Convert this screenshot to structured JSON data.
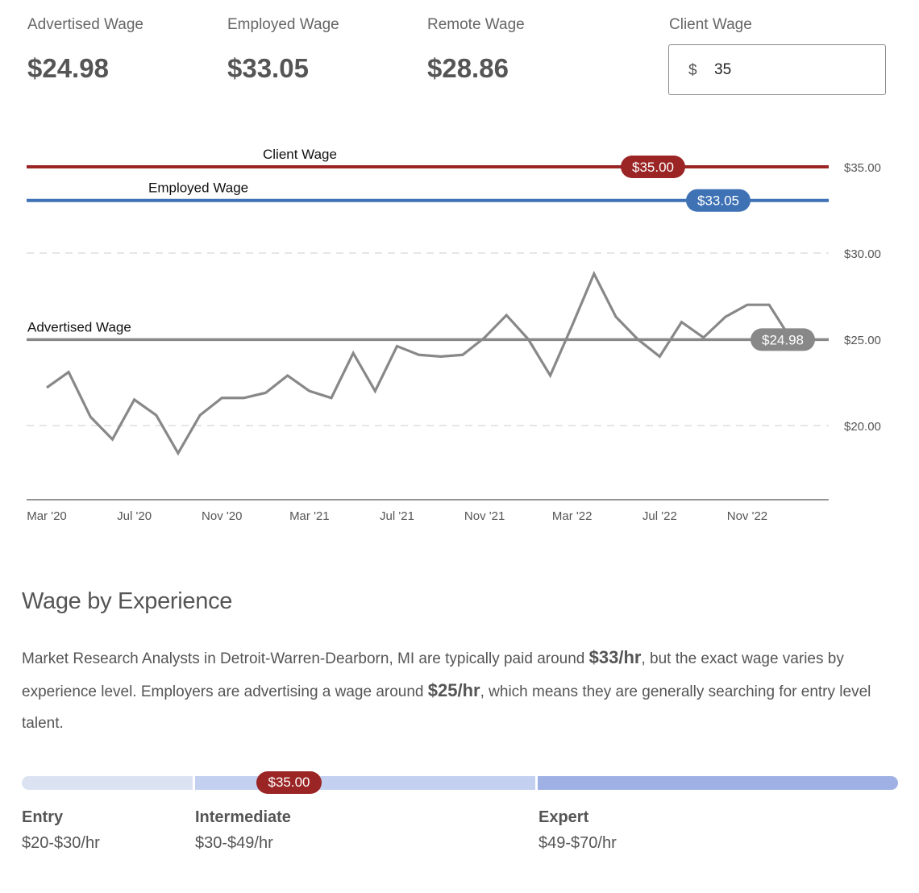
{
  "stats": [
    {
      "label": "Advertised Wage",
      "value": "$24.98"
    },
    {
      "label": "Employed Wage",
      "value": "$33.05"
    },
    {
      "label": "Remote Wage",
      "value": "$28.86"
    }
  ],
  "client_input": {
    "label": "Client Wage",
    "prefix": "$",
    "value": "35"
  },
  "chart_data": {
    "type": "line",
    "x": [
      "2020-03",
      "2020-04",
      "2020-05",
      "2020-06",
      "2020-07",
      "2020-08",
      "2020-09",
      "2020-10",
      "2020-11",
      "2020-12",
      "2021-01",
      "2021-02",
      "2021-03",
      "2021-04",
      "2021-05",
      "2021-06",
      "2021-07",
      "2021-08",
      "2021-09",
      "2021-10",
      "2021-11",
      "2021-12",
      "2022-01",
      "2022-02",
      "2022-03",
      "2022-04",
      "2022-05",
      "2022-06",
      "2022-07",
      "2022-08",
      "2022-09",
      "2022-10",
      "2022-11",
      "2022-12",
      "2023-01"
    ],
    "series": [
      {
        "values": [
          22.2,
          23.1,
          20.5,
          19.2,
          21.5,
          20.6,
          18.4,
          20.6,
          21.6,
          21.6,
          21.9,
          22.9,
          22.0,
          21.6,
          24.2,
          22.0,
          24.6,
          24.1,
          24.0,
          24.1,
          25.1,
          26.4,
          25.0,
          22.9,
          25.8,
          28.8,
          26.3,
          25.0,
          24.0,
          26.0,
          25.1,
          26.3,
          27.0,
          27.0,
          25.0
        ],
        "color": "#888888"
      }
    ],
    "reference_lines": [
      {
        "name": "Client Wage",
        "value": 35.0,
        "label": "$35.00",
        "color": "#9b2525"
      },
      {
        "name": "Employed Wage",
        "value": 33.05,
        "label": "$33.05",
        "color": "#3f72b5"
      },
      {
        "name": "Advertised Wage",
        "value": 24.98,
        "label": "$24.98",
        "color": "#888888"
      }
    ],
    "x_ticks": [
      "Mar '20",
      "Jul '20",
      "Nov '20",
      "Mar '21",
      "Jul '21",
      "Nov '21",
      "Mar '22",
      "Jul '22",
      "Nov '22"
    ],
    "y_ticks": [
      "$35.00",
      "$30.00",
      "$25.00",
      "$20.00"
    ],
    "ylim": [
      15,
      35
    ],
    "grid": "dashed horizontal at $20.00 and $30.00",
    "xlabel": "",
    "ylabel": "",
    "title": ""
  },
  "experience": {
    "title": "Wage by Experience",
    "text_1": "Market Research Analysts in Detroit-Warren-Dearborn, MI are typically paid around ",
    "bold_1": "$33/hr",
    "text_2": ", but the exact wage varies by experience level. Employers are advertising a wage around ",
    "bold_2": "$25/hr",
    "text_3": ", which means they are generally searching for entry level talent.",
    "client_marker": "$35.00",
    "levels": [
      {
        "name": "Entry",
        "range": "$20-$30/hr"
      },
      {
        "name": "Intermediate",
        "range": "$30-$49/hr"
      },
      {
        "name": "Expert",
        "range": "$49-$70/hr"
      }
    ]
  }
}
